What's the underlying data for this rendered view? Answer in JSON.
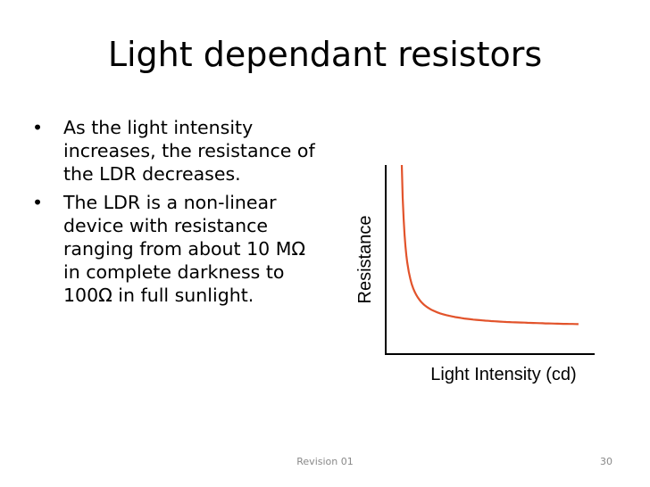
{
  "slide": {
    "title": "Light dependant resistors",
    "bullets": [
      "As the light intensity increases, the resistance of the LDR decreases.",
      "The LDR is a non-linear device with resistance ranging from about 10 MΩ in complete darkness to 100Ω in full sunlight."
    ],
    "bullet_symbol": "•"
  },
  "chart_data": {
    "type": "line",
    "title": "",
    "xlabel": "Light Intensity (cd)",
    "ylabel": "Resistance",
    "series_color": "#e2532b",
    "grid": false,
    "x": [
      0.2,
      0.5,
      1,
      1.5,
      2,
      3,
      4,
      5,
      6,
      7,
      8,
      9,
      10
    ],
    "y": [
      10,
      4,
      2,
      1.33,
      1,
      0.67,
      0.5,
      0.4,
      0.33,
      0.29,
      0.25,
      0.22,
      0.2
    ]
  },
  "footer": {
    "center_text": "Revision 01",
    "page_number": "30"
  }
}
